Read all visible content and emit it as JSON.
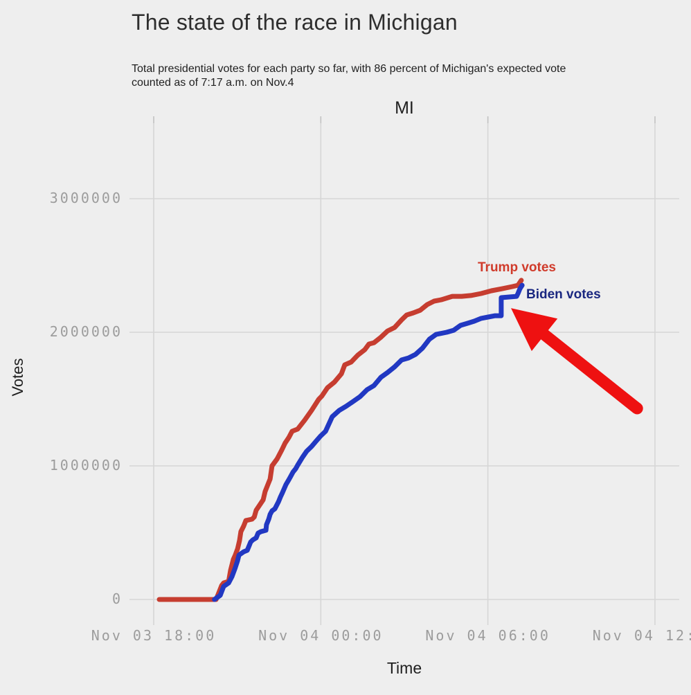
{
  "page": {
    "background": "#eeeeee"
  },
  "header": {
    "title": "The state of the race in Michigan",
    "subtitle_line1": "Total presidential votes for each party so far, with 86 percent of Michigan's expected vote",
    "subtitle_line2": "counted as of 7:17 a.m. on Nov.4"
  },
  "chart_data": {
    "type": "line",
    "title": "MI",
    "xlabel": "Time",
    "ylabel": "Votes",
    "x_unit": "hours_since_Nov_03_18:00",
    "x_domain": [
      -0.87,
      18.87
    ],
    "y_domain": [
      -202000,
      3565000
    ],
    "grid": true,
    "x_ticks": [
      {
        "h": 0,
        "label": "Nov 03 18:00"
      },
      {
        "h": 6,
        "label": "Nov 04 00:00"
      },
      {
        "h": 12,
        "label": "Nov 04 06:00"
      },
      {
        "h": 18,
        "label": "Nov 04 12:00"
      }
    ],
    "y_ticks": [
      {
        "v": 0,
        "label": "0"
      },
      {
        "v": 1000000,
        "label": "1000000"
      },
      {
        "v": 2000000,
        "label": "2000000"
      },
      {
        "v": 3000000,
        "label": "3000000"
      }
    ],
    "series": [
      {
        "name": "Trump votes",
        "color": "#c63d30",
        "label_color": "#d03b2b",
        "points": [
          [
            0.2,
            0
          ],
          [
            2.24,
            0
          ],
          [
            2.34,
            52000
          ],
          [
            2.44,
            104000
          ],
          [
            2.51,
            124000
          ],
          [
            2.69,
            135000
          ],
          [
            2.76,
            218000
          ],
          [
            2.86,
            300000
          ],
          [
            2.93,
            332000
          ],
          [
            3.01,
            378000
          ],
          [
            3.08,
            440000
          ],
          [
            3.13,
            508000
          ],
          [
            3.23,
            549000
          ],
          [
            3.31,
            591000
          ],
          [
            3.53,
            601000
          ],
          [
            3.61,
            617000
          ],
          [
            3.68,
            668000
          ],
          [
            3.8,
            705000
          ],
          [
            3.93,
            746000
          ],
          [
            4.0,
            808000
          ],
          [
            4.1,
            860000
          ],
          [
            4.18,
            901000
          ],
          [
            4.25,
            1000000
          ],
          [
            4.43,
            1052000
          ],
          [
            4.6,
            1119000
          ],
          [
            4.72,
            1171000
          ],
          [
            4.85,
            1212000
          ],
          [
            4.97,
            1259000
          ],
          [
            5.17,
            1275000
          ],
          [
            5.42,
            1342000
          ],
          [
            5.67,
            1415000
          ],
          [
            5.92,
            1497000
          ],
          [
            6.04,
            1523000
          ],
          [
            6.24,
            1585000
          ],
          [
            6.49,
            1627000
          ],
          [
            6.74,
            1689000
          ],
          [
            6.86,
            1756000
          ],
          [
            7.09,
            1777000
          ],
          [
            7.33,
            1829000
          ],
          [
            7.58,
            1870000
          ],
          [
            7.73,
            1912000
          ],
          [
            7.91,
            1922000
          ],
          [
            8.16,
            1963000
          ],
          [
            8.4,
            2010000
          ],
          [
            8.65,
            2036000
          ],
          [
            8.9,
            2093000
          ],
          [
            9.08,
            2129000
          ],
          [
            9.32,
            2145000
          ],
          [
            9.57,
            2165000
          ],
          [
            9.82,
            2207000
          ],
          [
            10.07,
            2233000
          ],
          [
            10.32,
            2243000
          ],
          [
            10.72,
            2269000
          ],
          [
            11.06,
            2269000
          ],
          [
            11.39,
            2275000
          ],
          [
            11.76,
            2290000
          ],
          [
            12.13,
            2311000
          ],
          [
            12.51,
            2326000
          ],
          [
            12.88,
            2342000
          ],
          [
            13.08,
            2352000
          ],
          [
            13.2,
            2389000
          ]
        ]
      },
      {
        "name": "Biden votes",
        "color": "#2138c2",
        "label_color": "#1a2780",
        "points": [
          [
            2.18,
            0
          ],
          [
            2.39,
            31000
          ],
          [
            2.51,
            98000
          ],
          [
            2.69,
            124000
          ],
          [
            2.81,
            171000
          ],
          [
            2.93,
            238000
          ],
          [
            3.01,
            290000
          ],
          [
            3.06,
            332000
          ],
          [
            3.23,
            357000
          ],
          [
            3.36,
            368000
          ],
          [
            3.43,
            404000
          ],
          [
            3.48,
            430000
          ],
          [
            3.56,
            446000
          ],
          [
            3.68,
            461000
          ],
          [
            3.75,
            497000
          ],
          [
            3.85,
            508000
          ],
          [
            4.03,
            518000
          ],
          [
            4.05,
            560000
          ],
          [
            4.13,
            601000
          ],
          [
            4.18,
            637000
          ],
          [
            4.25,
            663000
          ],
          [
            4.35,
            679000
          ],
          [
            4.48,
            731000
          ],
          [
            4.55,
            767000
          ],
          [
            4.62,
            798000
          ],
          [
            4.75,
            860000
          ],
          [
            4.85,
            896000
          ],
          [
            4.92,
            922000
          ],
          [
            5.0,
            953000
          ],
          [
            5.1,
            979000
          ],
          [
            5.17,
            1005000
          ],
          [
            5.35,
            1067000
          ],
          [
            5.49,
            1109000
          ],
          [
            5.67,
            1145000
          ],
          [
            5.84,
            1187000
          ],
          [
            5.99,
            1223000
          ],
          [
            6.17,
            1259000
          ],
          [
            6.41,
            1368000
          ],
          [
            6.66,
            1415000
          ],
          [
            6.91,
            1446000
          ],
          [
            7.16,
            1482000
          ],
          [
            7.41,
            1518000
          ],
          [
            7.66,
            1570000
          ],
          [
            7.91,
            1601000
          ],
          [
            8.16,
            1663000
          ],
          [
            8.4,
            1699000
          ],
          [
            8.65,
            1741000
          ],
          [
            8.9,
            1793000
          ],
          [
            9.15,
            1808000
          ],
          [
            9.4,
            1834000
          ],
          [
            9.65,
            1881000
          ],
          [
            9.9,
            1948000
          ],
          [
            10.14,
            1984000
          ],
          [
            10.52,
            2000000
          ],
          [
            10.77,
            2015000
          ],
          [
            11.02,
            2052000
          ],
          [
            11.26,
            2067000
          ],
          [
            11.51,
            2083000
          ],
          [
            11.76,
            2104000
          ],
          [
            12.01,
            2114000
          ],
          [
            12.26,
            2124000
          ],
          [
            12.48,
            2124000
          ],
          [
            12.48,
            2259000
          ],
          [
            13.03,
            2269000
          ],
          [
            13.08,
            2290000
          ],
          [
            13.15,
            2326000
          ],
          [
            13.23,
            2352000
          ]
        ]
      }
    ],
    "annotation": {
      "type": "arrow",
      "color": "#ee1111",
      "tail": [
        17.36,
        1430000
      ],
      "tip": [
        12.83,
        2181000
      ]
    },
    "style": {
      "grid_color": "#d6d6d6",
      "tick_mark_color": "#c2c2c2",
      "tick_text_color": "#9c9c9c",
      "line_width": 7
    }
  }
}
